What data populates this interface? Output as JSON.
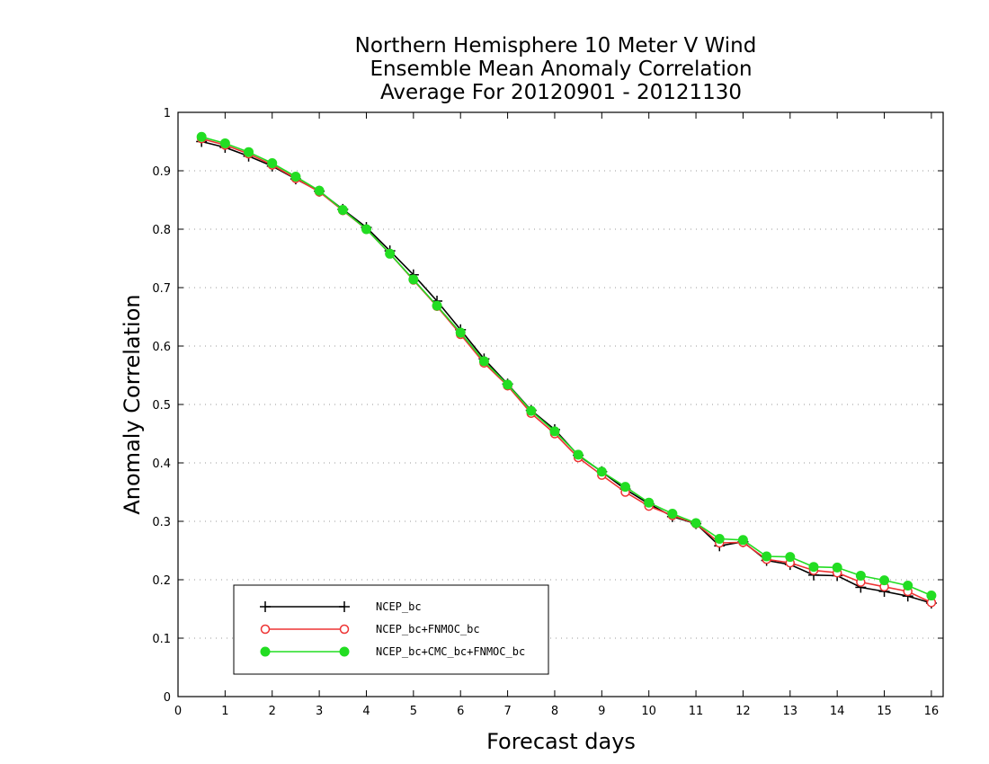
{
  "chart_data": {
    "type": "line",
    "title": [
      "Northern Hemisphere 10 Meter V Wind",
      "Ensemble Mean Anomaly Correlation",
      "Average For 20120901 - 20121130"
    ],
    "xlabel": "Forecast days",
    "ylabel": "Anomaly Correlation",
    "xlim": [
      0,
      16.25
    ],
    "ylim": [
      0,
      1
    ],
    "xticks": [
      0,
      1,
      2,
      3,
      4,
      5,
      6,
      7,
      8,
      9,
      10,
      11,
      12,
      13,
      14,
      15,
      16
    ],
    "yticks": [
      0,
      0.1,
      0.2,
      0.3,
      0.4,
      0.5,
      0.6,
      0.7,
      0.8,
      0.9,
      1
    ],
    "ytick_labels": [
      "0",
      "0.1",
      "0.2",
      "0.3",
      "0.4",
      "0.5",
      "0.6",
      "0.7",
      "0.8",
      "0.9",
      "1"
    ],
    "grid": "horizontal-dotted",
    "legend_position": "bottom-left",
    "x": [
      0.5,
      1.0,
      1.5,
      2.0,
      2.5,
      3.0,
      3.5,
      4.0,
      4.5,
      5.0,
      5.5,
      6.0,
      6.5,
      7.0,
      7.5,
      8.0,
      8.5,
      9.0,
      9.5,
      10.0,
      10.5,
      11.0,
      11.5,
      12.0,
      12.5,
      13.0,
      13.5,
      14.0,
      14.5,
      15.0,
      15.5,
      16.0
    ],
    "series": [
      {
        "name": "NCEP_bc",
        "color": "#000000",
        "marker": "plus",
        "values": [
          0.95,
          0.94,
          0.925,
          0.908,
          0.886,
          0.865,
          0.834,
          0.803,
          0.763,
          0.722,
          0.677,
          0.628,
          0.578,
          0.535,
          0.49,
          0.457,
          0.413,
          0.385,
          0.355,
          0.33,
          0.308,
          0.296,
          0.258,
          0.265,
          0.233,
          0.226,
          0.208,
          0.207,
          0.187,
          0.18,
          0.172,
          0.16
        ]
      },
      {
        "name": "NCEP_bc+FNMOC_bc",
        "color": "#ee3333",
        "marker": "open-circle",
        "values": [
          0.955,
          0.944,
          0.929,
          0.91,
          0.887,
          0.864,
          0.832,
          0.8,
          0.758,
          0.713,
          0.668,
          0.62,
          0.571,
          0.532,
          0.485,
          0.45,
          0.409,
          0.379,
          0.35,
          0.326,
          0.31,
          0.296,
          0.263,
          0.264,
          0.235,
          0.229,
          0.216,
          0.212,
          0.196,
          0.188,
          0.18,
          0.161
        ]
      },
      {
        "name": "NCEP_bc+CMC_bc+FNMOC_bc",
        "color": "#22dd22",
        "marker": "filled-circle",
        "values": [
          0.958,
          0.947,
          0.932,
          0.913,
          0.89,
          0.866,
          0.833,
          0.8,
          0.758,
          0.714,
          0.669,
          0.623,
          0.574,
          0.534,
          0.489,
          0.454,
          0.414,
          0.385,
          0.359,
          0.332,
          0.313,
          0.297,
          0.27,
          0.268,
          0.24,
          0.239,
          0.222,
          0.221,
          0.207,
          0.199,
          0.19,
          0.173
        ]
      }
    ]
  }
}
